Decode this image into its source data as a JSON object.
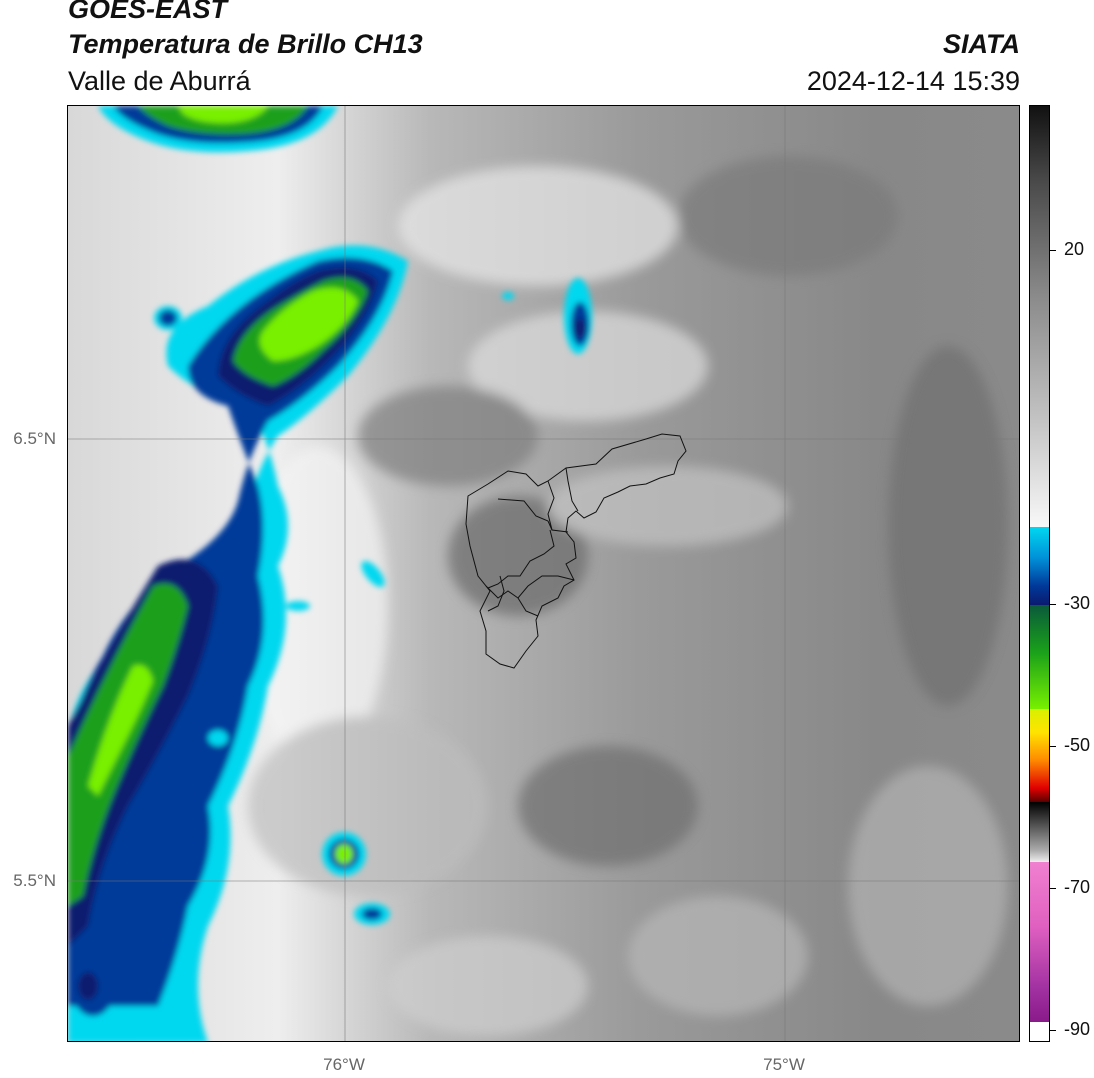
{
  "header": {
    "satellite": "GOES-EAST",
    "product": "Temperatura de Brillo CH13",
    "region": "Valle de Aburrá",
    "organization": "SIATA",
    "timestamp": "2024-12-14 15:39"
  },
  "map": {
    "latitude_labels": [
      "6.5°N",
      "5.5°N"
    ],
    "longitude_labels": [
      "76°W",
      "75°W"
    ],
    "gridlines": true,
    "boundaries": "municipality outlines (Valle de Aburrá)"
  },
  "colorbar": {
    "tick_labels": [
      "20",
      "-30",
      "-50",
      "-70",
      "-90"
    ],
    "colors": {
      "warm_gray": "#8a8a8a",
      "cyan": "#00d8f0",
      "blue": "#003a9a",
      "navy": "#0a1a6e",
      "green": "#1aa01a",
      "lime": "#78f000",
      "yellow": "#ffe400",
      "orange": "#ff8a00",
      "red": "#e00000",
      "dark_red": "#5a0000",
      "black": "#000000",
      "pink": "#e060c0",
      "purple": "#8a1a8a"
    }
  }
}
